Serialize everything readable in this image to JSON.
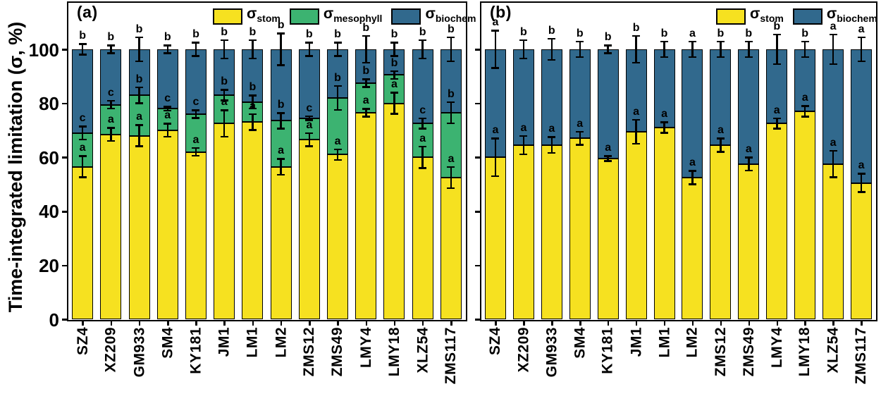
{
  "chart_data": [
    {
      "type": "bar",
      "stacked": true,
      "panel_label": "(a)",
      "ylabel": "Time-integrated limitation (σ, %)",
      "ylim": [
        0,
        117
      ],
      "yticks": [
        0,
        20,
        40,
        60,
        80,
        100
      ],
      "grid": false,
      "legend_position": "top-inside",
      "categories": [
        "SZ4",
        "XZ209",
        "GM933",
        "SM4",
        "KY181",
        "JM1",
        "LM1",
        "LM2",
        "ZMS12",
        "ZMS49",
        "LMY4",
        "LMY18",
        "XLZ54",
        "ZMS117"
      ],
      "legend": [
        {
          "base": "σ",
          "sub": "stom"
        },
        {
          "base": "σ",
          "sub": "mesophyll"
        },
        {
          "base": "σ",
          "sub": "biochem"
        }
      ],
      "series": [
        {
          "name": "σ_stom",
          "color": "#F6E120",
          "values": [
            56.5,
            68.5,
            68,
            70,
            62,
            72.5,
            73,
            56.5,
            66.5,
            61,
            76.5,
            80,
            60,
            52.5
          ]
        },
        {
          "name": "σ_mesophyll",
          "color": "#3CB371",
          "values": [
            12.5,
            11,
            15,
            8,
            14,
            10.5,
            7.5,
            17,
            8,
            21,
            11,
            10.5,
            12.5,
            24
          ]
        },
        {
          "name": "σ_biochem",
          "color": "#31698D",
          "values": [
            31,
            20.5,
            17,
            22,
            24,
            17,
            19.5,
            26.5,
            25.5,
            18,
            12.5,
            9.5,
            27.5,
            23.5
          ]
        }
      ],
      "error_bars": [
        {
          "at": "stom_top",
          "plus_minus": [
            4,
            2.5,
            4,
            2.5,
            1.5,
            5,
            3,
            3,
            2.5,
            2,
            1.5,
            4,
            4,
            4
          ]
        },
        {
          "at": "mesophyll_top",
          "plus_minus": [
            2.5,
            1.5,
            3,
            0.8,
            1.5,
            2,
            2.5,
            3,
            0.8,
            4.5,
            1.5,
            1.5,
            2,
            4
          ]
        },
        {
          "at": "total_100",
          "plus_minus": [
            2,
            1.5,
            4.5,
            1.5,
            2.5,
            3.5,
            3.5,
            6,
            2.5,
            2.5,
            5,
            2.5,
            3.5,
            4.5
          ]
        }
      ],
      "sig_letters": [
        {
          "at": "stom_top",
          "letters": [
            "a",
            "a",
            "a",
            "a",
            "a",
            "a",
            "a",
            "a",
            "a",
            "a",
            "a",
            "a",
            "a",
            "a"
          ]
        },
        {
          "at": "mesophyll_top",
          "letters": [
            "c",
            "c",
            "b",
            "c",
            "c",
            "b",
            "b",
            "b",
            "c",
            "b",
            "b",
            "b",
            "c",
            "b"
          ]
        },
        {
          "at": "total_100",
          "letters": [
            "b",
            "b",
            "b",
            "b",
            "b",
            "b",
            "b",
            "b",
            "b",
            "b",
            "b",
            "b",
            "b",
            "b"
          ]
        }
      ]
    },
    {
      "type": "bar",
      "stacked": true,
      "panel_label": "(b)",
      "ylabel": "Time-integrated limitation (σ, %)",
      "ylim": [
        0,
        117
      ],
      "yticks": [
        0,
        20,
        40,
        60,
        80,
        100
      ],
      "grid": false,
      "legend_position": "top-inside",
      "categories": [
        "SZ4",
        "XZ209",
        "GM933",
        "SM4",
        "KY181",
        "JM1",
        "LM1",
        "LM2",
        "ZMS12",
        "ZMS49",
        "LMY4",
        "LMY18",
        "XLZ54",
        "ZMS117"
      ],
      "legend": [
        {
          "base": "σ",
          "sub": "stom"
        },
        {
          "base": "σ",
          "sub": "biochem"
        }
      ],
      "series": [
        {
          "name": "σ_stom",
          "color": "#F6E120",
          "values": [
            60,
            64.5,
            64.5,
            67,
            59.5,
            69.5,
            71,
            52.5,
            64.5,
            57.5,
            72.5,
            77,
            57.5,
            50.5
          ]
        },
        {
          "name": "σ_biochem",
          "color": "#31698D",
          "values": [
            40,
            35.5,
            35.5,
            33,
            40.5,
            30.5,
            29,
            47.5,
            35.5,
            42.5,
            27.5,
            23,
            42.5,
            49.5
          ]
        }
      ],
      "error_bars": [
        {
          "at": "stom_top",
          "plus_minus": [
            7,
            3.5,
            3,
            2.5,
            1,
            4.5,
            2,
            2.5,
            2.5,
            2.5,
            2,
            2,
            5,
            3.5
          ]
        },
        {
          "at": "total_100",
          "plus_minus": [
            7,
            3.5,
            4,
            3,
            1.5,
            5,
            3,
            3,
            3,
            3,
            5.5,
            3,
            5.5,
            4.5
          ]
        }
      ],
      "sig_letters": [
        {
          "at": "stom_top",
          "letters": [
            "a",
            "a",
            "a",
            "a",
            "a",
            "a",
            "a",
            "a",
            "a",
            "a",
            "a",
            "a",
            "a",
            "a"
          ]
        },
        {
          "at": "total_100",
          "letters": [
            "a",
            "b",
            "b",
            "b",
            "b",
            "b",
            "b",
            "a",
            "b",
            "b",
            "b",
            "b",
            "a",
            "a"
          ]
        }
      ]
    }
  ]
}
